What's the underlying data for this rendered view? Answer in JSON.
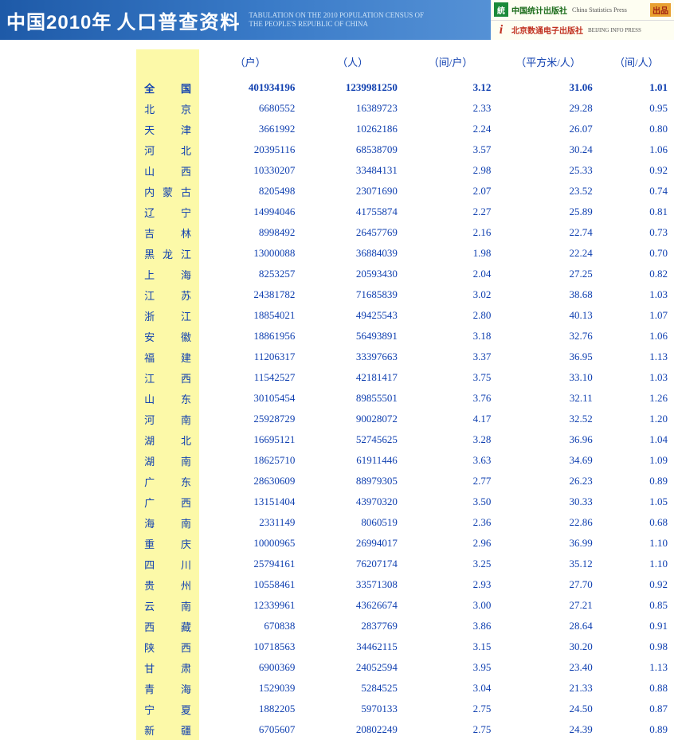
{
  "header": {
    "title_cn1": "中国2010年",
    "title_cn2": "人口普查资料",
    "title_en1": "TABULATION ON THE 2010 POPULATION CENSUS OF",
    "title_en2": "THE PEOPLE'S REPUBLIC OF CHINA",
    "logo1_cn": "中国统计出版社",
    "logo1_en": "China Statistics Press",
    "logo2_cn": "北京数通电子出版社",
    "logo2_en": "BEIJING INFO PRESS",
    "badge": "出品"
  },
  "table": {
    "columns": [
      "",
      "（户）",
      "（人）",
      "（间/户）",
      "（平方米/人）",
      "（间/人）"
    ],
    "col_align": [
      "left",
      "right",
      "right",
      "right",
      "right",
      "right"
    ],
    "background_region": "#fcf9a8",
    "text_color": "#1040b0",
    "rows": [
      {
        "region": "全　国",
        "total": true,
        "c1": "401934196",
        "c2": "1239981250",
        "c3": "3.12",
        "c4": "31.06",
        "c5": "1.01"
      },
      {
        "region": "北　京",
        "c1": "6680552",
        "c2": "16389723",
        "c3": "2.33",
        "c4": "29.28",
        "c5": "0.95"
      },
      {
        "region": "天　津",
        "c1": "3661992",
        "c2": "10262186",
        "c3": "2.24",
        "c4": "26.07",
        "c5": "0.80"
      },
      {
        "region": "河　北",
        "c1": "20395116",
        "c2": "68538709",
        "c3": "3.57",
        "c4": "30.24",
        "c5": "1.06"
      },
      {
        "region": "山　西",
        "c1": "10330207",
        "c2": "33484131",
        "c3": "2.98",
        "c4": "25.33",
        "c5": "0.92"
      },
      {
        "region": "内蒙古",
        "c1": "8205498",
        "c2": "23071690",
        "c3": "2.07",
        "c4": "23.52",
        "c5": "0.74"
      },
      {
        "region": "辽　宁",
        "c1": "14994046",
        "c2": "41755874",
        "c3": "2.27",
        "c4": "25.89",
        "c5": "0.81"
      },
      {
        "region": "吉　林",
        "c1": "8998492",
        "c2": "26457769",
        "c3": "2.16",
        "c4": "22.74",
        "c5": "0.73"
      },
      {
        "region": "黑龙江",
        "c1": "13000088",
        "c2": "36884039",
        "c3": "1.98",
        "c4": "22.24",
        "c5": "0.70"
      },
      {
        "region": "上　海",
        "c1": "8253257",
        "c2": "20593430",
        "c3": "2.04",
        "c4": "27.25",
        "c5": "0.82"
      },
      {
        "region": "江　苏",
        "c1": "24381782",
        "c2": "71685839",
        "c3": "3.02",
        "c4": "38.68",
        "c5": "1.03"
      },
      {
        "region": "浙　江",
        "c1": "18854021",
        "c2": "49425543",
        "c3": "2.80",
        "c4": "40.13",
        "c5": "1.07"
      },
      {
        "region": "安　徽",
        "c1": "18861956",
        "c2": "56493891",
        "c3": "3.18",
        "c4": "32.76",
        "c5": "1.06"
      },
      {
        "region": "福　建",
        "c1": "11206317",
        "c2": "33397663",
        "c3": "3.37",
        "c4": "36.95",
        "c5": "1.13"
      },
      {
        "region": "江　西",
        "c1": "11542527",
        "c2": "42181417",
        "c3": "3.75",
        "c4": "33.10",
        "c5": "1.03"
      },
      {
        "region": "山　东",
        "c1": "30105454",
        "c2": "89855501",
        "c3": "3.76",
        "c4": "32.11",
        "c5": "1.26"
      },
      {
        "region": "河　南",
        "c1": "25928729",
        "c2": "90028072",
        "c3": "4.17",
        "c4": "32.52",
        "c5": "1.20"
      },
      {
        "region": "湖　北",
        "c1": "16695121",
        "c2": "52745625",
        "c3": "3.28",
        "c4": "36.96",
        "c5": "1.04"
      },
      {
        "region": "湖　南",
        "c1": "18625710",
        "c2": "61911446",
        "c3": "3.63",
        "c4": "34.69",
        "c5": "1.09"
      },
      {
        "region": "广　东",
        "c1": "28630609",
        "c2": "88979305",
        "c3": "2.77",
        "c4": "26.23",
        "c5": "0.89"
      },
      {
        "region": "广　西",
        "c1": "13151404",
        "c2": "43970320",
        "c3": "3.50",
        "c4": "30.33",
        "c5": "1.05"
      },
      {
        "region": "海　南",
        "c1": "2331149",
        "c2": "8060519",
        "c3": "2.36",
        "c4": "22.86",
        "c5": "0.68"
      },
      {
        "region": "重　庆",
        "c1": "10000965",
        "c2": "26994017",
        "c3": "2.96",
        "c4": "36.99",
        "c5": "1.10"
      },
      {
        "region": "四　川",
        "c1": "25794161",
        "c2": "76207174",
        "c3": "3.25",
        "c4": "35.12",
        "c5": "1.10"
      },
      {
        "region": "贵　州",
        "c1": "10558461",
        "c2": "33571308",
        "c3": "2.93",
        "c4": "27.70",
        "c5": "0.92"
      },
      {
        "region": "云　南",
        "c1": "12339961",
        "c2": "43626674",
        "c3": "3.00",
        "c4": "27.21",
        "c5": "0.85"
      },
      {
        "region": "西　藏",
        "c1": "670838",
        "c2": "2837769",
        "c3": "3.86",
        "c4": "28.64",
        "c5": "0.91"
      },
      {
        "region": "陕　西",
        "c1": "10718563",
        "c2": "34462115",
        "c3": "3.15",
        "c4": "30.20",
        "c5": "0.98"
      },
      {
        "region": "甘　肃",
        "c1": "6900369",
        "c2": "24052594",
        "c3": "3.95",
        "c4": "23.40",
        "c5": "1.13"
      },
      {
        "region": "青　海",
        "c1": "1529039",
        "c2": "5284525",
        "c3": "3.04",
        "c4": "21.33",
        "c5": "0.88"
      },
      {
        "region": "宁　夏",
        "c1": "1882205",
        "c2": "5970133",
        "c3": "2.75",
        "c4": "24.50",
        "c5": "0.87"
      },
      {
        "region": "新　疆",
        "c1": "6705607",
        "c2": "20802249",
        "c3": "2.75",
        "c4": "24.39",
        "c5": "0.89"
      }
    ]
  }
}
